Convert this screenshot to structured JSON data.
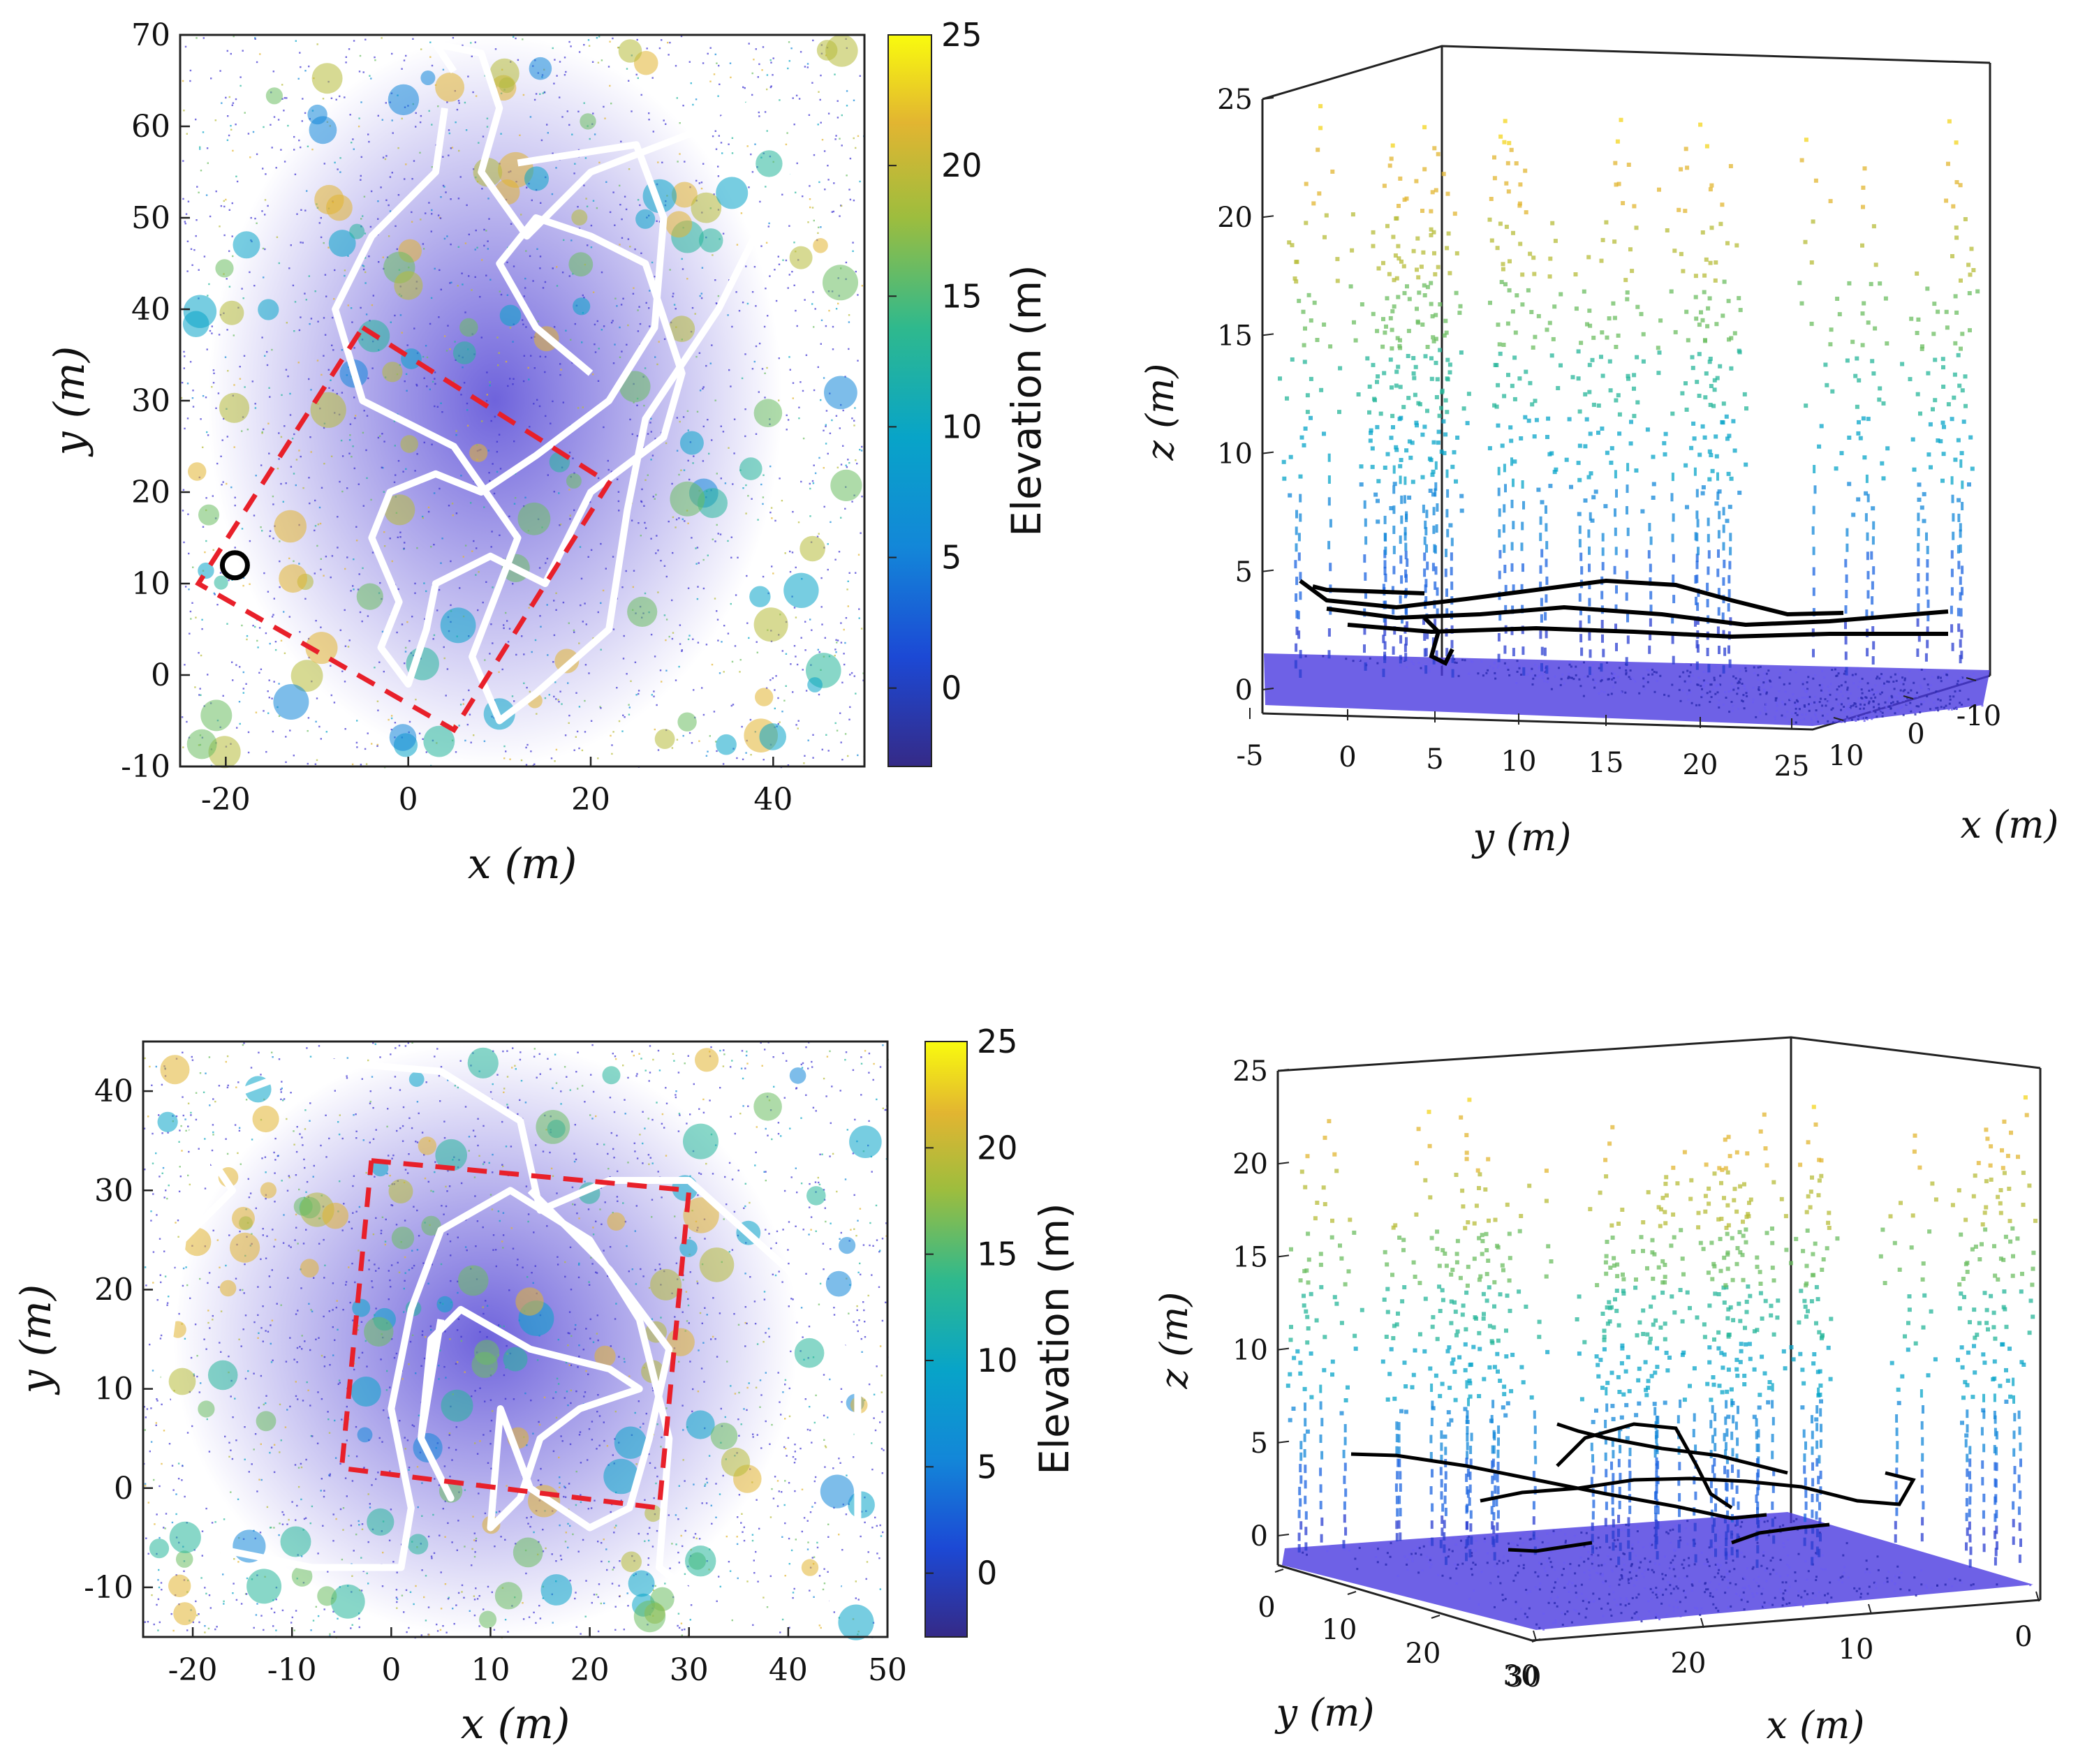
{
  "chart_data": [
    {
      "type": "scatter",
      "panel": "top-left",
      "title": "",
      "xlabel": "x (m)",
      "ylabel": "y (m)",
      "xlim": [
        -25,
        50
      ],
      "ylim": [
        -10,
        70
      ],
      "xticks": [
        -20,
        0,
        20,
        40
      ],
      "yticks": [
        -10,
        0,
        10,
        20,
        30,
        40,
        50,
        60,
        70
      ],
      "colorbar": {
        "label": "Elevation (m)",
        "range": [
          -3,
          25
        ],
        "ticks": [
          0,
          5,
          10,
          15,
          20,
          25
        ]
      },
      "trajectory": [
        [
          5,
          66
        ],
        [
          3,
          69
        ],
        [
          8,
          68
        ],
        [
          10,
          62
        ],
        [
          8,
          55
        ],
        [
          13,
          48
        ],
        [
          20,
          55
        ],
        [
          33,
          60
        ],
        [
          44,
          66
        ],
        [
          42,
          56
        ],
        [
          34,
          40
        ],
        [
          26,
          28
        ],
        [
          24,
          18
        ],
        [
          22,
          5
        ],
        [
          14,
          -2
        ],
        [
          10,
          -5
        ],
        [
          7,
          2
        ],
        [
          12,
          15
        ],
        [
          5,
          25
        ],
        [
          -5,
          30
        ],
        [
          -8,
          40
        ],
        [
          -4,
          48
        ],
        [
          3,
          55
        ],
        [
          4,
          62
        ]
      ],
      "trajectory2": [
        [
          12,
          56
        ],
        [
          25,
          58
        ],
        [
          28,
          50
        ],
        [
          27,
          38
        ],
        [
          22,
          30
        ],
        [
          14,
          24
        ],
        [
          8,
          20
        ],
        [
          3,
          22
        ],
        [
          -2,
          20
        ],
        [
          -4,
          15
        ],
        [
          -1,
          8
        ],
        [
          -3,
          3
        ],
        [
          0,
          -1
        ],
        [
          2,
          5
        ],
        [
          3,
          10
        ],
        [
          9,
          13
        ],
        [
          15,
          10
        ],
        [
          20,
          20
        ],
        [
          28,
          26
        ],
        [
          30,
          33
        ],
        [
          26,
          45
        ],
        [
          20,
          48
        ],
        [
          14,
          50
        ],
        [
          10,
          45
        ],
        [
          14,
          38
        ],
        [
          20,
          33
        ]
      ],
      "boundary": [
        [
          -5,
          38
        ],
        [
          22,
          21
        ],
        [
          5,
          -6
        ],
        [
          -23,
          10
        ],
        [
          -5,
          38
        ]
      ],
      "marker": {
        "x": -19,
        "y": 12
      }
    },
    {
      "type": "scatter3d",
      "panel": "top-right",
      "title": "",
      "xlabel": "x (m)",
      "ylabel": "y (m)",
      "zlabel": "z (m)",
      "xticks": [
        10,
        0,
        -10
      ],
      "yticks": [
        -5,
        0,
        5,
        10,
        15,
        20,
        25
      ],
      "zticks": [
        0,
        5,
        10,
        15,
        20,
        25
      ]
    },
    {
      "type": "scatter",
      "panel": "bottom-left",
      "title": "",
      "xlabel": "x (m)",
      "ylabel": "y (m)",
      "xlim": [
        -25,
        50
      ],
      "ylim": [
        -15,
        45
      ],
      "xticks": [
        -20,
        -10,
        0,
        10,
        20,
        30,
        40,
        50
      ],
      "yticks": [
        -10,
        0,
        10,
        20,
        30,
        40
      ],
      "colorbar": {
        "label": "Elevation (m)",
        "range": [
          -3,
          25
        ],
        "ticks": [
          0,
          5,
          10,
          15,
          20,
          25
        ]
      },
      "trajectory": [
        [
          -15,
          40
        ],
        [
          -7,
          43
        ],
        [
          5,
          42
        ],
        [
          13,
          37
        ],
        [
          15,
          28
        ],
        [
          22,
          31
        ],
        [
          30,
          31
        ],
        [
          40,
          22
        ],
        [
          47,
          12
        ],
        [
          47,
          -3
        ],
        [
          44,
          -13
        ],
        [
          32,
          -12
        ],
        [
          27,
          -8
        ],
        [
          28,
          5
        ],
        [
          25,
          17
        ],
        [
          20,
          25
        ],
        [
          12,
          30
        ],
        [
          5,
          26
        ],
        [
          2,
          18
        ],
        [
          0,
          8
        ],
        [
          2,
          -2
        ],
        [
          1,
          -8
        ],
        [
          -8,
          -8
        ],
        [
          -18,
          -6
        ],
        [
          -23,
          10
        ],
        [
          -21,
          25
        ],
        [
          -16,
          30
        ],
        [
          -20,
          36
        ],
        [
          -15,
          40
        ]
      ],
      "trajectory2": [
        [
          14,
          30
        ],
        [
          22,
          22
        ],
        [
          28,
          14
        ],
        [
          26,
          5
        ],
        [
          24,
          -2
        ],
        [
          20,
          -4
        ],
        [
          14,
          0
        ],
        [
          11,
          8
        ],
        [
          10,
          -4
        ],
        [
          13,
          -1
        ],
        [
          15,
          5
        ],
        [
          19,
          8
        ],
        [
          25,
          10
        ],
        [
          22,
          12
        ],
        [
          14,
          14
        ],
        [
          7,
          18
        ],
        [
          4,
          15
        ],
        [
          3,
          5
        ],
        [
          6,
          -1
        ],
        [
          3,
          5
        ],
        [
          5,
          17
        ]
      ],
      "boundary": [
        [
          -2,
          33
        ],
        [
          30,
          30
        ],
        [
          27,
          -2
        ],
        [
          -5,
          2
        ],
        [
          -2,
          33
        ]
      ]
    },
    {
      "type": "scatter3d",
      "panel": "bottom-right",
      "title": "",
      "xlabel": "x (m)",
      "ylabel": "y (m)",
      "zlabel": "z (m)",
      "xticks": [
        30,
        20,
        10,
        0
      ],
      "yticks": [
        0,
        10,
        20,
        30
      ],
      "zticks": [
        0,
        5,
        10,
        15,
        20,
        25
      ]
    }
  ]
}
